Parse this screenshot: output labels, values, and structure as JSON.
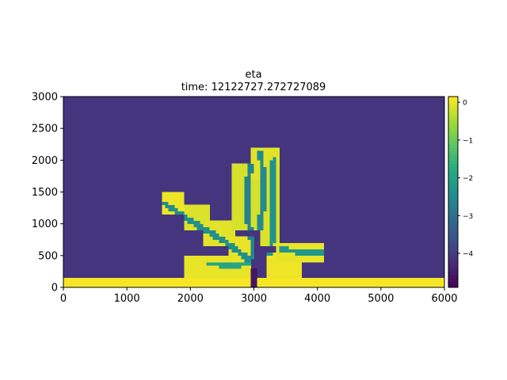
{
  "chart_data": {
    "type": "heatmap",
    "title": "eta",
    "subtitle": "time: 12122727.272727089",
    "xlabel": "",
    "ylabel": "",
    "xlim": [
      0,
      6000
    ],
    "ylim": [
      0,
      3000
    ],
    "x_ticks": [
      0,
      1000,
      2000,
      3000,
      4000,
      5000,
      6000
    ],
    "y_ticks": [
      0,
      500,
      1000,
      1500,
      2000,
      2500,
      3000
    ],
    "colormap": "viridis",
    "colorbar": {
      "range": [
        -4.9,
        0.15
      ],
      "ticks": [
        0,
        -1,
        -2,
        -3,
        -4
      ]
    },
    "background_value": -4.1,
    "land_value": 0.1,
    "land_strip": {
      "y_max": 150
    },
    "deposit_blobs": [
      {
        "x": [
          1560,
          1900
        ],
        "y": [
          1130,
          1520
        ],
        "value": 0.05
      },
      {
        "x": [
          1900,
          2300
        ],
        "y": [
          900,
          1300
        ],
        "value": -0.1
      },
      {
        "x": [
          2200,
          2700
        ],
        "y": [
          650,
          1050
        ],
        "value": -0.05
      },
      {
        "x": [
          2600,
          3000
        ],
        "y": [
          450,
          820
        ],
        "value": 0.0
      },
      {
        "x": [
          2650,
          3200
        ],
        "y": [
          900,
          1950
        ],
        "value": -0.15
      },
      {
        "x": [
          2950,
          3400
        ],
        "y": [
          1700,
          2200
        ],
        "value": -0.05
      },
      {
        "x": [
          3100,
          3400
        ],
        "y": [
          650,
          2000
        ],
        "value": -0.1
      },
      {
        "x": [
          1880,
          2950
        ],
        "y": [
          150,
          500
        ],
        "value": 0.0
      },
      {
        "x": [
          3200,
          3750
        ],
        "y": [
          150,
          560
        ],
        "value": 0.05
      },
      {
        "x": [
          3350,
          4100
        ],
        "y": [
          420,
          700
        ],
        "value": 0.0
      }
    ],
    "channel_paths": [
      {
        "points": [
          [
            1600,
            1320
          ],
          [
            2000,
            1050
          ],
          [
            2500,
            750
          ],
          [
            2950,
            420
          ]
        ],
        "value": -2.4
      },
      {
        "points": [
          [
            2950,
            1900
          ],
          [
            2880,
            1500
          ],
          [
            2900,
            1100
          ],
          [
            2980,
            700
          ],
          [
            3000,
            150
          ]
        ],
        "value": -2.6
      },
      {
        "points": [
          [
            3100,
            2100
          ],
          [
            3150,
            1800
          ],
          [
            3130,
            1200
          ],
          [
            3050,
            700
          ],
          [
            3000,
            380
          ]
        ],
        "value": -2.5
      },
      {
        "points": [
          [
            3320,
            2000
          ],
          [
            3300,
            1400
          ],
          [
            3310,
            900
          ],
          [
            3250,
            550
          ],
          [
            3000,
            380
          ]
        ],
        "value": -2.3
      },
      {
        "points": [
          [
            3450,
            590
          ],
          [
            3750,
            560
          ],
          [
            4100,
            540
          ]
        ],
        "value": -2.2
      },
      {
        "points": [
          [
            2300,
            380
          ],
          [
            2600,
            360
          ],
          [
            2950,
            380
          ]
        ],
        "value": -1.9
      }
    ],
    "inlet_channel": {
      "x": [
        2930,
        3050
      ],
      "y": [
        0,
        320
      ],
      "value": -4.6
    }
  }
}
